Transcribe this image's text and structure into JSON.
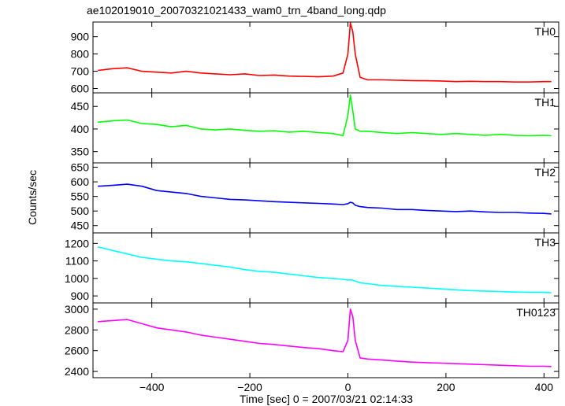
{
  "chart_data": {
    "type": "line",
    "title": "ae102019010_20070321021433_wam0_trn_4band_long.qdp",
    "xlabel": "Time [sec] 0 = 2007/03/21 02:14:33",
    "ylabel": "Counts/sec",
    "xlim": [
      -520,
      430
    ],
    "x_ticks": [
      -400,
      -200,
      0,
      200,
      400
    ],
    "x_tick_labels": [
      "−400",
      "−200",
      "0",
      "200",
      "400"
    ],
    "grid": false,
    "panels": [
      {
        "name": "TH0",
        "color": "#ff0000",
        "ylim": [
          575,
          985
        ],
        "y_ticks": [
          600,
          700,
          800,
          900
        ],
        "series": [
          {
            "name": "TH0",
            "x": [
              -510,
              -480,
              -450,
              -420,
              -390,
              -360,
              -330,
              -300,
              -270,
              -240,
              -210,
              -180,
              -150,
              -120,
              -90,
              -60,
              -30,
              -10,
              0,
              5,
              10,
              15,
              25,
              40,
              70,
              100,
              130,
              160,
              190,
              220,
              250,
              280,
              310,
              340,
              370,
              400,
              415
            ],
            "y": [
              705,
              715,
              720,
              700,
              695,
              690,
              700,
              690,
              685,
              680,
              685,
              675,
              678,
              672,
              670,
              668,
              672,
              690,
              800,
              980,
              930,
              800,
              665,
              650,
              650,
              648,
              646,
              645,
              644,
              640,
              642,
              640,
              640,
              638,
              638,
              640,
              640
            ]
          }
        ]
      },
      {
        "name": "TH1",
        "color": "#00ff00",
        "ylim": [
          325,
          480
        ],
        "y_ticks": [
          350,
          400,
          450
        ],
        "series": [
          {
            "name": "TH1",
            "x": [
              -510,
              -480,
              -450,
              -420,
              -390,
              -360,
              -330,
              -300,
              -270,
              -240,
              -210,
              -180,
              -150,
              -120,
              -90,
              -60,
              -30,
              -10,
              0,
              5,
              10,
              15,
              25,
              40,
              70,
              100,
              130,
              160,
              190,
              220,
              250,
              280,
              310,
              340,
              370,
              400,
              415
            ],
            "y": [
              415,
              418,
              420,
              412,
              410,
              405,
              408,
              400,
              398,
              400,
              397,
              395,
              396,
              393,
              395,
              392,
              390,
              385,
              430,
              475,
              440,
              400,
              395,
              395,
              392,
              390,
              392,
              390,
              388,
              390,
              388,
              386,
              388,
              386,
              385,
              386,
              385
            ]
          }
        ]
      },
      {
        "name": "TH2",
        "color": "#0000ff",
        "ylim": [
          425,
          665
        ],
        "y_ticks": [
          450,
          500,
          550,
          600,
          650
        ],
        "series": [
          {
            "name": "TH2",
            "x": [
              -510,
              -480,
              -450,
              -420,
              -390,
              -360,
              -330,
              -300,
              -270,
              -240,
              -210,
              -180,
              -150,
              -120,
              -90,
              -60,
              -30,
              -10,
              0,
              5,
              10,
              15,
              25,
              40,
              70,
              100,
              130,
              160,
              190,
              220,
              250,
              280,
              310,
              340,
              370,
              400,
              415
            ],
            "y": [
              585,
              588,
              592,
              585,
              570,
              565,
              560,
              550,
              545,
              540,
              538,
              535,
              532,
              530,
              528,
              526,
              524,
              522,
              525,
              530,
              528,
              520,
              515,
              512,
              510,
              505,
              505,
              502,
              500,
              498,
              500,
              497,
              495,
              495,
              493,
              492,
              490
            ]
          }
        ]
      },
      {
        "name": "TH3",
        "color": "#00ffff",
        "ylim": [
          860,
          1260
        ],
        "y_ticks": [
          900,
          1000,
          1100,
          1200
        ],
        "series": [
          {
            "name": "TH3",
            "x": [
              -510,
              -480,
              -450,
              -420,
              -390,
              -360,
              -330,
              -300,
              -270,
              -240,
              -210,
              -180,
              -150,
              -120,
              -90,
              -60,
              -30,
              -10,
              0,
              5,
              10,
              15,
              25,
              40,
              70,
              100,
              130,
              160,
              190,
              220,
              250,
              280,
              310,
              340,
              370,
              400,
              415
            ],
            "y": [
              1180,
              1160,
              1140,
              1120,
              1110,
              1100,
              1095,
              1085,
              1075,
              1065,
              1050,
              1040,
              1035,
              1025,
              1015,
              1005,
              1000,
              995,
              990,
              992,
              990,
              985,
              975,
              970,
              960,
              955,
              950,
              945,
              940,
              935,
              930,
              928,
              925,
              922,
              920,
              920,
              918
            ]
          }
        ]
      },
      {
        "name": "TH0123",
        "color": "#ff00ff",
        "ylim": [
          2340,
          3060
        ],
        "y_ticks": [
          2400,
          2600,
          2800,
          3000
        ],
        "series": [
          {
            "name": "TH0123",
            "x": [
              -510,
              -480,
              -450,
              -420,
              -390,
              -360,
              -330,
              -300,
              -270,
              -240,
              -210,
              -180,
              -150,
              -120,
              -90,
              -60,
              -30,
              -10,
              0,
              5,
              10,
              15,
              25,
              40,
              70,
              100,
              130,
              160,
              190,
              220,
              250,
              280,
              310,
              340,
              370,
              400,
              415
            ],
            "y": [
              2880,
              2890,
              2900,
              2860,
              2820,
              2800,
              2780,
              2750,
              2730,
              2710,
              2690,
              2670,
              2660,
              2645,
              2630,
              2620,
              2600,
              2590,
              2700,
              3000,
              2930,
              2700,
              2530,
              2520,
              2510,
              2500,
              2490,
              2485,
              2480,
              2475,
              2470,
              2465,
              2460,
              2455,
              2450,
              2450,
              2448
            ]
          }
        ]
      }
    ]
  }
}
